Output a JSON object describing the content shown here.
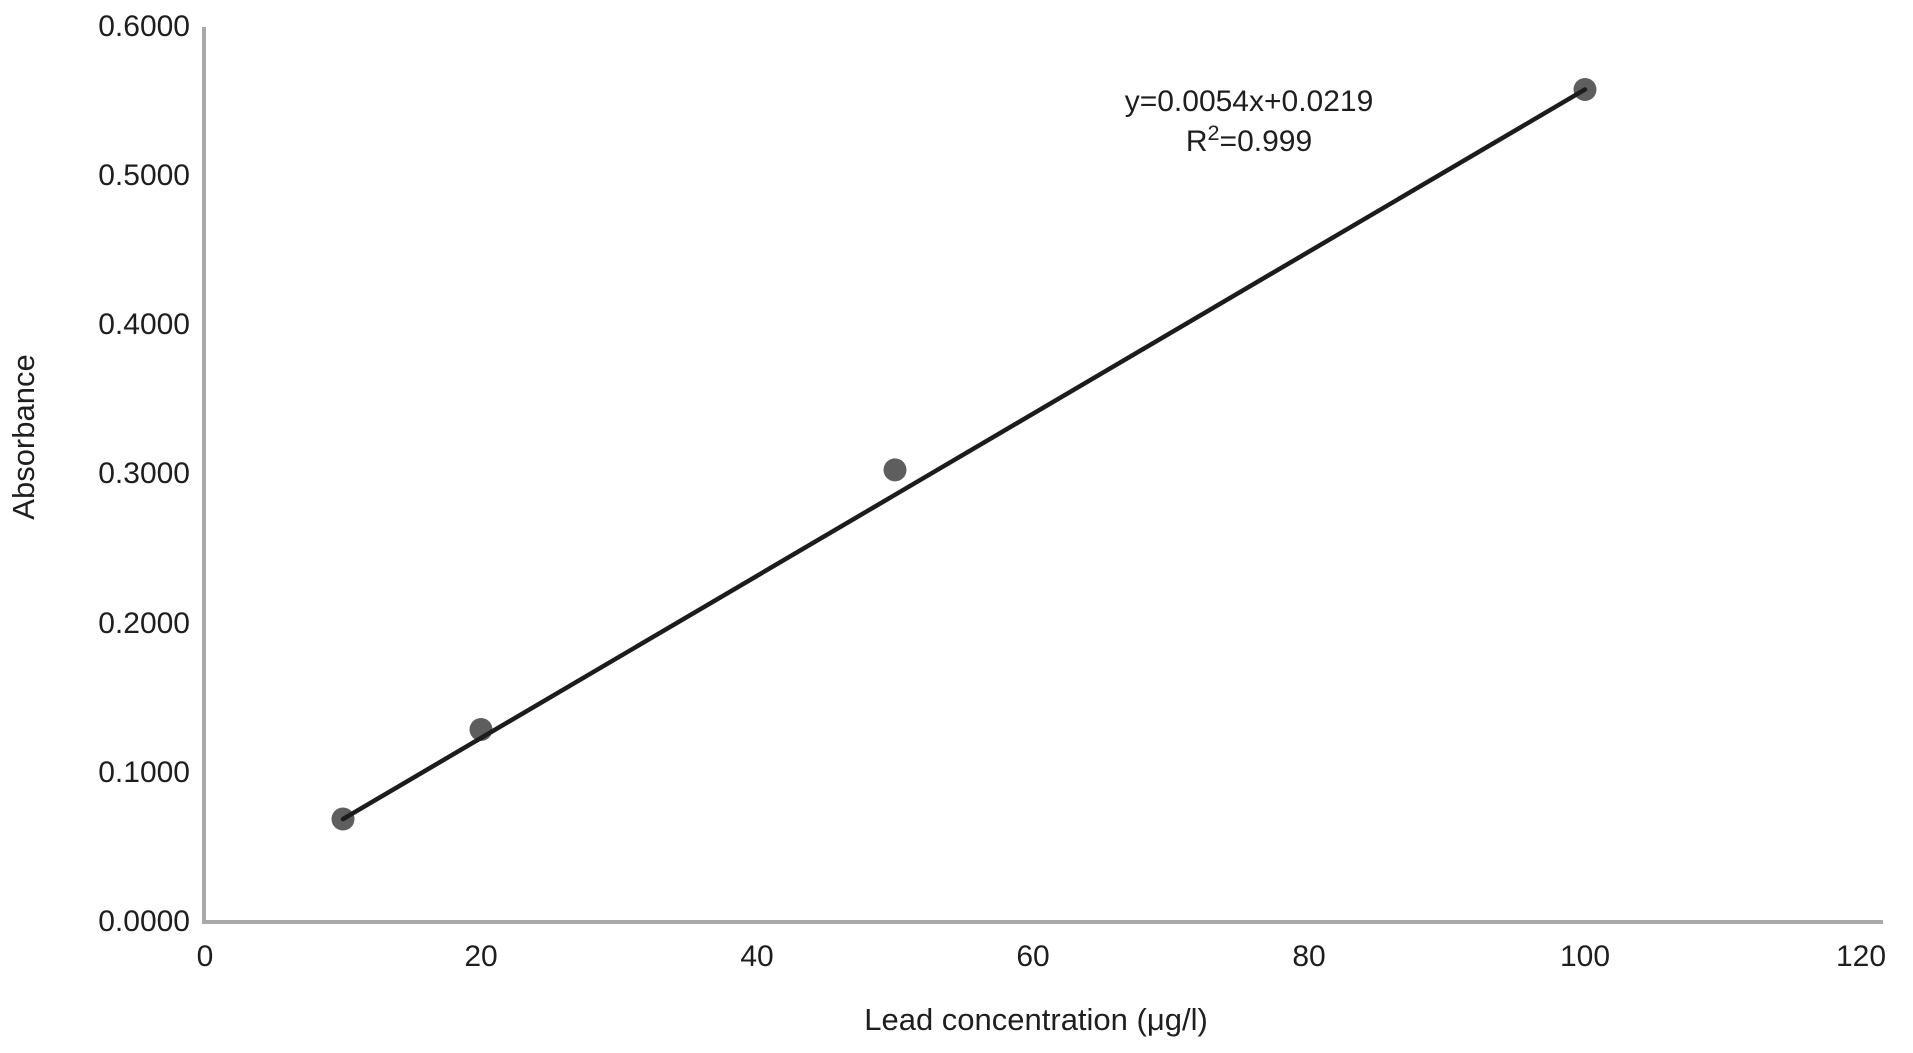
{
  "colors": {
    "background": "#ffffff",
    "axis": "#a9a9a9",
    "trendline": "#1c1c1c",
    "marker": "#5e5e5e",
    "text": "#1e1e1e"
  },
  "chart_data": {
    "type": "scatter",
    "title": "",
    "xlabel": "Lead concentration (μg/l)",
    "ylabel": "Absorbance",
    "xlim": [
      0,
      120
    ],
    "ylim": [
      0,
      0.6
    ],
    "x_tick_labels": [
      "0",
      "20",
      "40",
      "60",
      "80",
      "100",
      "120"
    ],
    "y_tick_labels": [
      "0.0000",
      "0.1000",
      "0.2000",
      "0.3000",
      "0.4000",
      "0.5000",
      "0.6000"
    ],
    "grid": false,
    "legend": false,
    "points": [
      {
        "x": 10,
        "y": 0.069
      },
      {
        "x": 20,
        "y": 0.129
      },
      {
        "x": 50,
        "y": 0.303
      },
      {
        "x": 100,
        "y": 0.558
      }
    ],
    "trendline": {
      "equation_label": "y=0.0054x+0.0219",
      "slope": 0.0054,
      "intercept": 0.0219,
      "r_squared": 0.999,
      "r2_prefix": "R",
      "r2_sup": "2",
      "r2_suffix": "=0.999"
    }
  }
}
